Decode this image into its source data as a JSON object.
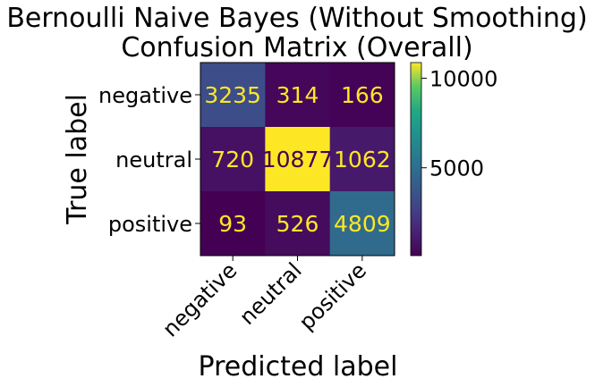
{
  "chart_data": {
    "type": "heatmap",
    "title_lines": [
      "Bernoulli Naive Bayes (Without Smoothing)",
      "Confusion Matrix (Overall)"
    ],
    "xlabel": "Predicted label",
    "ylabel": "True label",
    "x_categories": [
      "negative",
      "neutral",
      "positive"
    ],
    "y_categories": [
      "negative",
      "neutral",
      "positive"
    ],
    "matrix": [
      [
        3235,
        314,
        166
      ],
      [
        720,
        10877,
        1062
      ],
      [
        93,
        526,
        4809
      ]
    ],
    "colormap": "viridis",
    "colorbar": {
      "min": 93,
      "max": 10877,
      "ticks": [
        5000,
        10000
      ],
      "tick_labels": [
        "5000",
        "10000"
      ]
    },
    "text_colors": {
      "on_dark": "#fde725",
      "on_light": "#440154"
    }
  }
}
